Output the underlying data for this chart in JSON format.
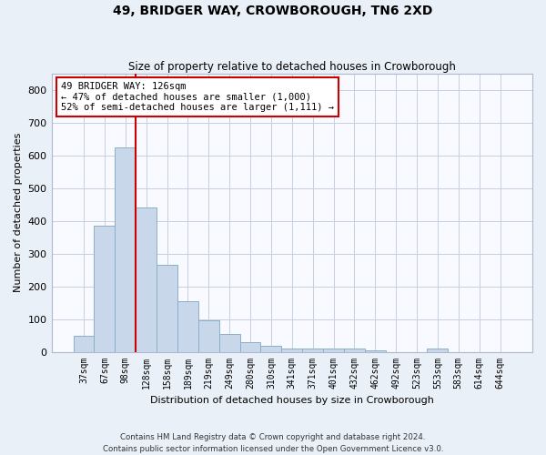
{
  "title": "49, BRIDGER WAY, CROWBOROUGH, TN6 2XD",
  "subtitle": "Size of property relative to detached houses in Crowborough",
  "xlabel": "Distribution of detached houses by size in Crowborough",
  "ylabel": "Number of detached properties",
  "categories": [
    "37sqm",
    "67sqm",
    "98sqm",
    "128sqm",
    "158sqm",
    "189sqm",
    "219sqm",
    "249sqm",
    "280sqm",
    "310sqm",
    "341sqm",
    "371sqm",
    "401sqm",
    "432sqm",
    "462sqm",
    "492sqm",
    "523sqm",
    "553sqm",
    "583sqm",
    "614sqm",
    "644sqm"
  ],
  "values": [
    50,
    385,
    625,
    440,
    265,
    155,
    97,
    55,
    30,
    18,
    10,
    10,
    10,
    10,
    5,
    0,
    0,
    10,
    0,
    0,
    0
  ],
  "bar_color": "#c8d8ea",
  "bar_edge_color": "#8aafc8",
  "vline_color": "#cc0000",
  "vline_x_idx": 2.5,
  "annotation_text": "49 BRIDGER WAY: 126sqm\n← 47% of detached houses are smaller (1,000)\n52% of semi-detached houses are larger (1,111) →",
  "annotation_box_color": "#ffffff",
  "annotation_box_edge": "#cc0000",
  "ylim": [
    0,
    850
  ],
  "yticks": [
    0,
    100,
    200,
    300,
    400,
    500,
    600,
    700,
    800
  ],
  "footer": "Contains HM Land Registry data © Crown copyright and database right 2024.\nContains public sector information licensed under the Open Government Licence v3.0.",
  "background_color": "#eaf0f8",
  "plot_bg_color": "#f8faff",
  "grid_color": "#c5cfe0"
}
